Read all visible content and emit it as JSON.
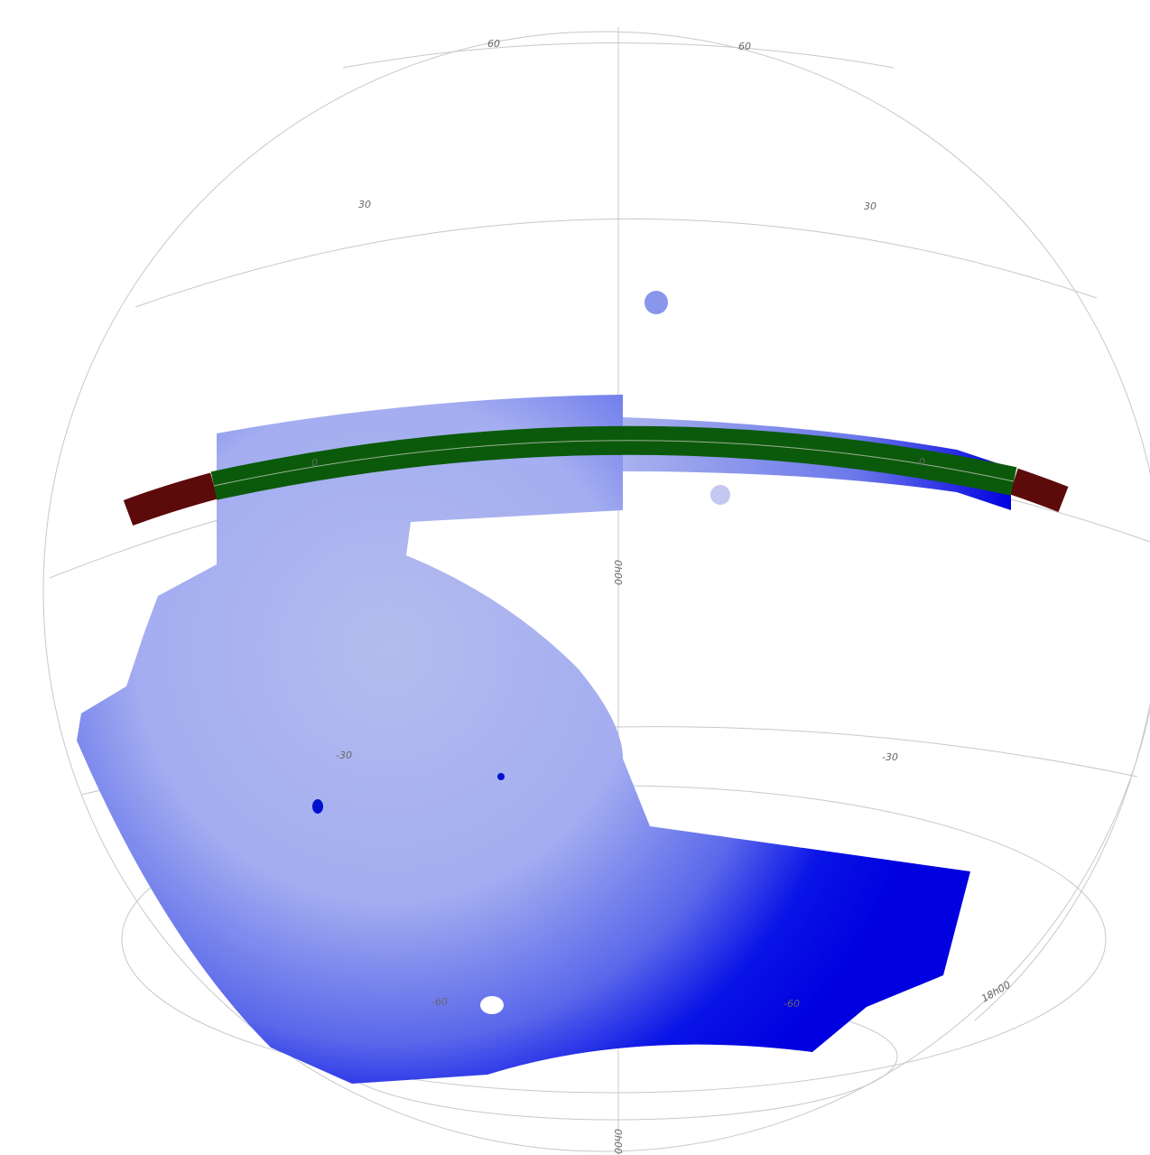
{
  "labels": [
    "60",
    "60",
    "30",
    "30",
    "0",
    "0",
    "0h00",
    "-30",
    "-30",
    "-60",
    "-60",
    "18h00",
    "0h00"
  ]
}
